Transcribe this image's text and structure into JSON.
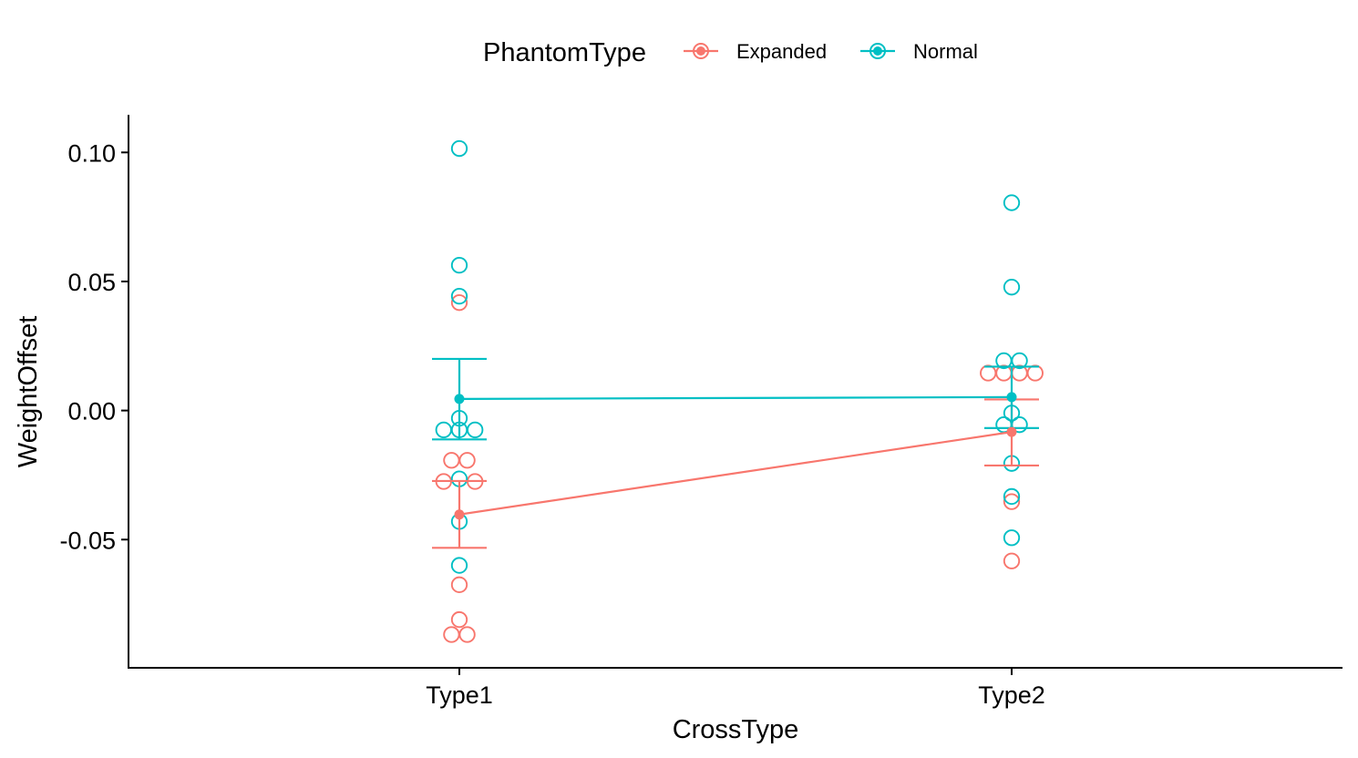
{
  "chart_data": {
    "type": "scatter",
    "title": "",
    "xlabel": "CrossType",
    "ylabel": "WeightOffset",
    "categories": [
      "Type1",
      "Type2"
    ],
    "ylim": [
      -0.1,
      0.115
    ],
    "yticks": [
      0.1,
      0.05,
      0.0,
      -0.05
    ],
    "ytick_labels": [
      "0.10",
      "0.05",
      "0.00",
      "-0.05"
    ],
    "grid": false,
    "legend": {
      "title": "PhantomType",
      "placement": "top",
      "entries": [
        "Expanded",
        "Normal"
      ]
    },
    "series": [
      {
        "name": "Expanded",
        "color": "#F8766D",
        "means": [
          -0.0403,
          -0.0083
        ],
        "error_bars": [
          {
            "low": -0.0532,
            "high": -0.0273
          },
          {
            "low": -0.0213,
            "high": 0.0043
          }
        ],
        "points": [
          {
            "category": "Type1",
            "dodge": 0,
            "y": 0.0418
          },
          {
            "category": "Type1",
            "dodge": -1,
            "y": -0.0193
          },
          {
            "category": "Type1",
            "dodge": 1,
            "y": -0.0193
          },
          {
            "category": "Type1",
            "dodge": -2,
            "y": -0.0275
          },
          {
            "category": "Type1",
            "dodge": 2,
            "y": -0.0275
          },
          {
            "category": "Type1",
            "dodge": 0,
            "y": -0.0675
          },
          {
            "category": "Type1",
            "dodge": 0,
            "y": -0.081
          },
          {
            "category": "Type1",
            "dodge": -1,
            "y": -0.0868
          },
          {
            "category": "Type1",
            "dodge": 1,
            "y": -0.0868
          },
          {
            "category": "Type2",
            "dodge": -3,
            "y": 0.0145
          },
          {
            "category": "Type2",
            "dodge": -1,
            "y": 0.0145
          },
          {
            "category": "Type2",
            "dodge": 1,
            "y": 0.0145
          },
          {
            "category": "Type2",
            "dodge": 3,
            "y": 0.0145
          },
          {
            "category": "Type2",
            "dodge": 0,
            "y": -0.0353
          },
          {
            "category": "Type2",
            "dodge": 0,
            "y": -0.0583
          }
        ]
      },
      {
        "name": "Normal",
        "color": "#00BFC4",
        "means": [
          0.0045,
          0.0052
        ],
        "error_bars": [
          {
            "low": -0.0112,
            "high": 0.02
          },
          {
            "low": -0.0068,
            "high": 0.017
          }
        ],
        "points": [
          {
            "category": "Type1",
            "dodge": 0,
            "y": 0.1015
          },
          {
            "category": "Type1",
            "dodge": 0,
            "y": 0.0563
          },
          {
            "category": "Type1",
            "dodge": 0,
            "y": 0.0443
          },
          {
            "category": "Type1",
            "dodge": 0,
            "y": -0.003
          },
          {
            "category": "Type1",
            "dodge": -2,
            "y": -0.0075
          },
          {
            "category": "Type1",
            "dodge": 0,
            "y": -0.0075
          },
          {
            "category": "Type1",
            "dodge": 2,
            "y": -0.0075
          },
          {
            "category": "Type1",
            "dodge": 0,
            "y": -0.0265
          },
          {
            "category": "Type1",
            "dodge": 0,
            "y": -0.043
          },
          {
            "category": "Type1",
            "dodge": 0,
            "y": -0.06
          },
          {
            "category": "Type2",
            "dodge": 0,
            "y": 0.0805
          },
          {
            "category": "Type2",
            "dodge": 0,
            "y": 0.0478
          },
          {
            "category": "Type2",
            "dodge": -1,
            "y": 0.0193
          },
          {
            "category": "Type2",
            "dodge": 1,
            "y": 0.0193
          },
          {
            "category": "Type2",
            "dodge": 0,
            "y": -0.001
          },
          {
            "category": "Type2",
            "dodge": -1,
            "y": -0.0055
          },
          {
            "category": "Type2",
            "dodge": 1,
            "y": -0.0055
          },
          {
            "category": "Type2",
            "dodge": 0,
            "y": -0.0205
          },
          {
            "category": "Type2",
            "dodge": 0,
            "y": -0.0333
          },
          {
            "category": "Type2",
            "dodge": 0,
            "y": -0.0493
          }
        ]
      }
    ]
  }
}
